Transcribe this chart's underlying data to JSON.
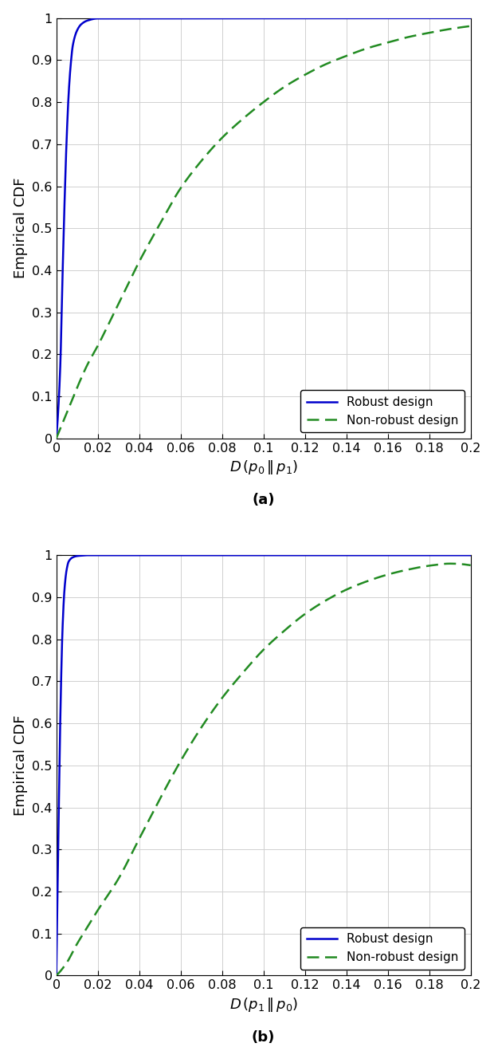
{
  "fig_width": 6.2,
  "fig_height": 13.18,
  "dpi": 100,
  "background_color": "#ffffff",
  "robust_color": "#0000cc",
  "nonrobust_color": "#228B22",
  "robust_label": "Robust design",
  "nonrobust_label": "Non-robust design",
  "robust_linewidth": 1.8,
  "nonrobust_linewidth": 1.8,
  "grid_color": "#d0d0d0",
  "grid_linewidth": 0.7,
  "tick_fontsize": 11.5,
  "label_fontsize": 13,
  "legend_fontsize": 11,
  "subplot_a": {
    "ylabel": "Empirical CDF",
    "label": "(a)",
    "xlim": [
      0,
      0.2
    ],
    "ylim": [
      0,
      1.0
    ],
    "xticks": [
      0.0,
      0.02,
      0.04,
      0.06,
      0.08,
      0.1,
      0.12,
      0.14,
      0.16,
      0.18,
      0.2
    ],
    "yticks": [
      0.0,
      0.1,
      0.2,
      0.3,
      0.4,
      0.5,
      0.6,
      0.7,
      0.8,
      0.9,
      1.0
    ],
    "robust_x": [
      0.0,
      0.001,
      0.002,
      0.003,
      0.004,
      0.005,
      0.006,
      0.007,
      0.008,
      0.01,
      0.012,
      0.015,
      0.02
    ],
    "robust_y": [
      0.0,
      0.07,
      0.18,
      0.38,
      0.56,
      0.71,
      0.82,
      0.89,
      0.935,
      0.97,
      0.985,
      0.994,
      0.999
    ],
    "nonrobust_x": [
      0.0,
      0.005,
      0.01,
      0.015,
      0.02,
      0.03,
      0.04,
      0.05,
      0.06,
      0.07,
      0.08,
      0.09,
      0.1,
      0.11,
      0.12,
      0.13,
      0.14,
      0.15,
      0.16,
      0.17,
      0.18,
      0.19,
      0.2
    ],
    "nonrobust_y": [
      0.0,
      0.06,
      0.12,
      0.175,
      0.22,
      0.32,
      0.42,
      0.51,
      0.595,
      0.66,
      0.715,
      0.76,
      0.8,
      0.836,
      0.865,
      0.89,
      0.91,
      0.928,
      0.942,
      0.955,
      0.965,
      0.974,
      0.981
    ]
  },
  "subplot_b": {
    "ylabel": "Empirical CDF",
    "label": "(b)",
    "xlim": [
      0,
      0.2
    ],
    "ylim": [
      0,
      1.0
    ],
    "xticks": [
      0.0,
      0.02,
      0.04,
      0.06,
      0.08,
      0.1,
      0.12,
      0.14,
      0.16,
      0.18,
      0.2
    ],
    "yticks": [
      0.0,
      0.1,
      0.2,
      0.3,
      0.4,
      0.5,
      0.6,
      0.7,
      0.8,
      0.9,
      1.0
    ],
    "robust_x": [
      0.0,
      0.001,
      0.002,
      0.003,
      0.004,
      0.005,
      0.006,
      0.008,
      0.01,
      0.012,
      0.015
    ],
    "robust_y": [
      0.0,
      0.32,
      0.62,
      0.82,
      0.92,
      0.965,
      0.985,
      0.995,
      0.998,
      0.999,
      1.0
    ],
    "nonrobust_x": [
      0.0,
      0.005,
      0.01,
      0.015,
      0.02,
      0.03,
      0.04,
      0.05,
      0.06,
      0.07,
      0.08,
      0.09,
      0.1,
      0.11,
      0.12,
      0.13,
      0.14,
      0.15,
      0.16,
      0.17,
      0.18,
      0.19,
      0.2
    ],
    "nonrobust_y": [
      0.0,
      0.03,
      0.075,
      0.115,
      0.155,
      0.23,
      0.325,
      0.42,
      0.51,
      0.59,
      0.66,
      0.72,
      0.775,
      0.82,
      0.86,
      0.892,
      0.918,
      0.938,
      0.954,
      0.966,
      0.975,
      0.98,
      0.976
    ]
  }
}
